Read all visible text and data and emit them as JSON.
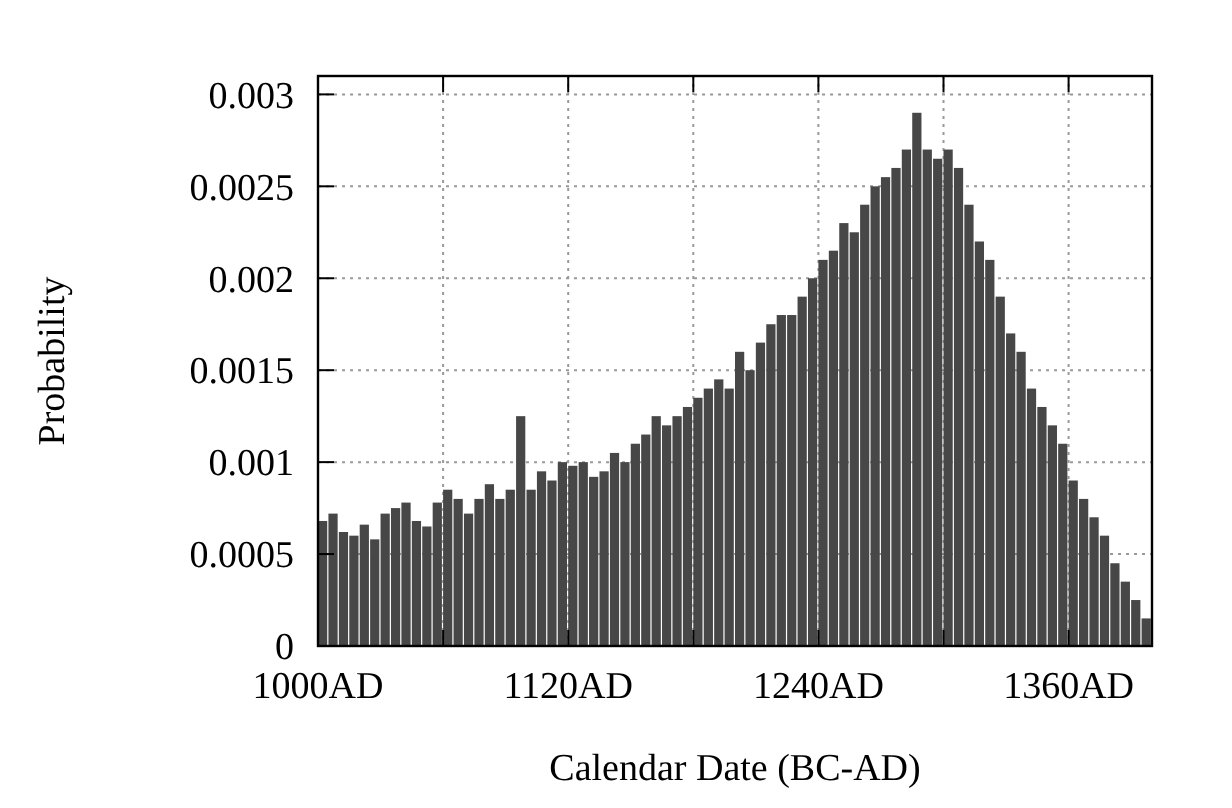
{
  "chart_data": {
    "type": "histogram",
    "xlabel": "Calendar Date (BC-AD)",
    "ylabel": "Probability",
    "color": "#474747",
    "bins": [
      1000,
      1005,
      1010,
      1015,
      1020,
      1025,
      1030,
      1035,
      1040,
      1045,
      1050,
      1055,
      1060,
      1065,
      1070,
      1075,
      1080,
      1085,
      1090,
      1095,
      1100,
      1105,
      1110,
      1115,
      1120,
      1125,
      1130,
      1135,
      1140,
      1145,
      1150,
      1155,
      1160,
      1165,
      1170,
      1175,
      1180,
      1185,
      1190,
      1195,
      1200,
      1205,
      1210,
      1215,
      1220,
      1225,
      1230,
      1235,
      1240,
      1245,
      1250,
      1255,
      1260,
      1265,
      1270,
      1275,
      1280,
      1285,
      1290,
      1295,
      1300,
      1305,
      1310,
      1315,
      1320,
      1325,
      1330,
      1335,
      1340,
      1345,
      1350,
      1355,
      1360,
      1365,
      1370,
      1375,
      1380,
      1385,
      1390,
      1395,
      1400
    ],
    "values": [
      0.00068,
      0.00072,
      0.00062,
      0.0006,
      0.00066,
      0.00058,
      0.00072,
      0.00075,
      0.00078,
      0.00068,
      0.00065,
      0.00078,
      0.00085,
      0.0008,
      0.00072,
      0.0008,
      0.00088,
      0.0008,
      0.00085,
      0.00125,
      0.00085,
      0.00095,
      0.0009,
      0.001,
      0.00098,
      0.001,
      0.00092,
      0.00095,
      0.00105,
      0.001,
      0.0011,
      0.00115,
      0.00125,
      0.0012,
      0.00125,
      0.0013,
      0.00135,
      0.0014,
      0.00145,
      0.0014,
      0.0016,
      0.0015,
      0.00165,
      0.00175,
      0.0018,
      0.0018,
      0.0019,
      0.002,
      0.0021,
      0.00215,
      0.0023,
      0.00225,
      0.0024,
      0.0025,
      0.00255,
      0.0026,
      0.0027,
      0.0029,
      0.0027,
      0.00265,
      0.0027,
      0.0026,
      0.0024,
      0.0022,
      0.0021,
      0.0019,
      0.0017,
      0.0016,
      0.0014,
      0.0013,
      0.0012,
      0.0011,
      0.0009,
      0.0008,
      0.0007,
      0.0006,
      0.00045,
      0.00035,
      0.00025,
      0.00015
    ],
    "xlim": [
      1000,
      1400
    ],
    "xticks": [
      {
        "value": 1000,
        "label": "1000AD"
      },
      {
        "value": 1060,
        "label": null
      },
      {
        "value": 1120,
        "label": "1120AD"
      },
      {
        "value": 1180,
        "label": null
      },
      {
        "value": 1240,
        "label": "1240AD"
      },
      {
        "value": 1300,
        "label": null
      },
      {
        "value": 1360,
        "label": "1360AD"
      }
    ],
    "ylim": [
      0,
      0.0031
    ],
    "yticks": [
      0,
      0.0005,
      0.001,
      0.0015,
      0.002,
      0.0025,
      0.003
    ],
    "grid": true
  }
}
